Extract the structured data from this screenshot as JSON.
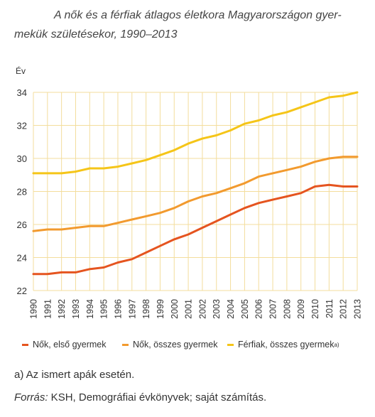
{
  "title_line1": "A nők és a férfiak átlagos életkora Magyarországon gyer-",
  "title_line2": "mekük születésekor, 1990–2013",
  "chart_data": {
    "type": "line",
    "title": "A nők és a férfiak átlagos életkora Magyarországon gyermekük születésekor, 1990–2013",
    "ylabel": "Év",
    "xlabel": "",
    "ylim": [
      22,
      34
    ],
    "yticks": [
      22,
      24,
      26,
      28,
      30,
      32,
      34
    ],
    "grid": true,
    "legend_position": "bottom",
    "x": [
      "1990",
      "1991",
      "1992",
      "1993",
      "1994",
      "1995",
      "1996",
      "1997",
      "1998",
      "1999",
      "2000",
      "2001",
      "2002",
      "2003",
      "2004",
      "2005",
      "2006",
      "2007",
      "2008",
      "2009",
      "2010",
      "2011",
      "2012",
      "2013"
    ],
    "series": [
      {
        "name": "Nők, első gyermek",
        "color": "#e5541f",
        "values": [
          23.0,
          23.0,
          23.1,
          23.1,
          23.3,
          23.4,
          23.7,
          23.9,
          24.3,
          24.7,
          25.1,
          25.4,
          25.8,
          26.2,
          26.6,
          27.0,
          27.3,
          27.5,
          27.7,
          27.9,
          28.3,
          28.4,
          28.3,
          28.3
        ]
      },
      {
        "name": "Nők, összes gyermek",
        "color": "#f29a2e",
        "values": [
          25.6,
          25.7,
          25.7,
          25.8,
          25.9,
          25.9,
          26.1,
          26.3,
          26.5,
          26.7,
          27.0,
          27.4,
          27.7,
          27.9,
          28.2,
          28.5,
          28.9,
          29.1,
          29.3,
          29.5,
          29.8,
          30.0,
          30.1,
          30.1
        ]
      },
      {
        "name": "Férfiak, összes gyermek",
        "color": "#f5c518",
        "values": [
          29.1,
          29.1,
          29.1,
          29.2,
          29.4,
          29.4,
          29.5,
          29.7,
          29.9,
          30.2,
          30.5,
          30.9,
          31.2,
          31.4,
          31.7,
          32.1,
          32.3,
          32.6,
          32.8,
          33.1,
          33.4,
          33.7,
          33.8,
          34.0
        ]
      }
    ]
  },
  "legend_sup": "a)",
  "note": "a) Az ismert apák esetén.",
  "source_label": "Forrás:",
  "source_text": " KSH, Demográfiai évkönyvek; saját számítás."
}
